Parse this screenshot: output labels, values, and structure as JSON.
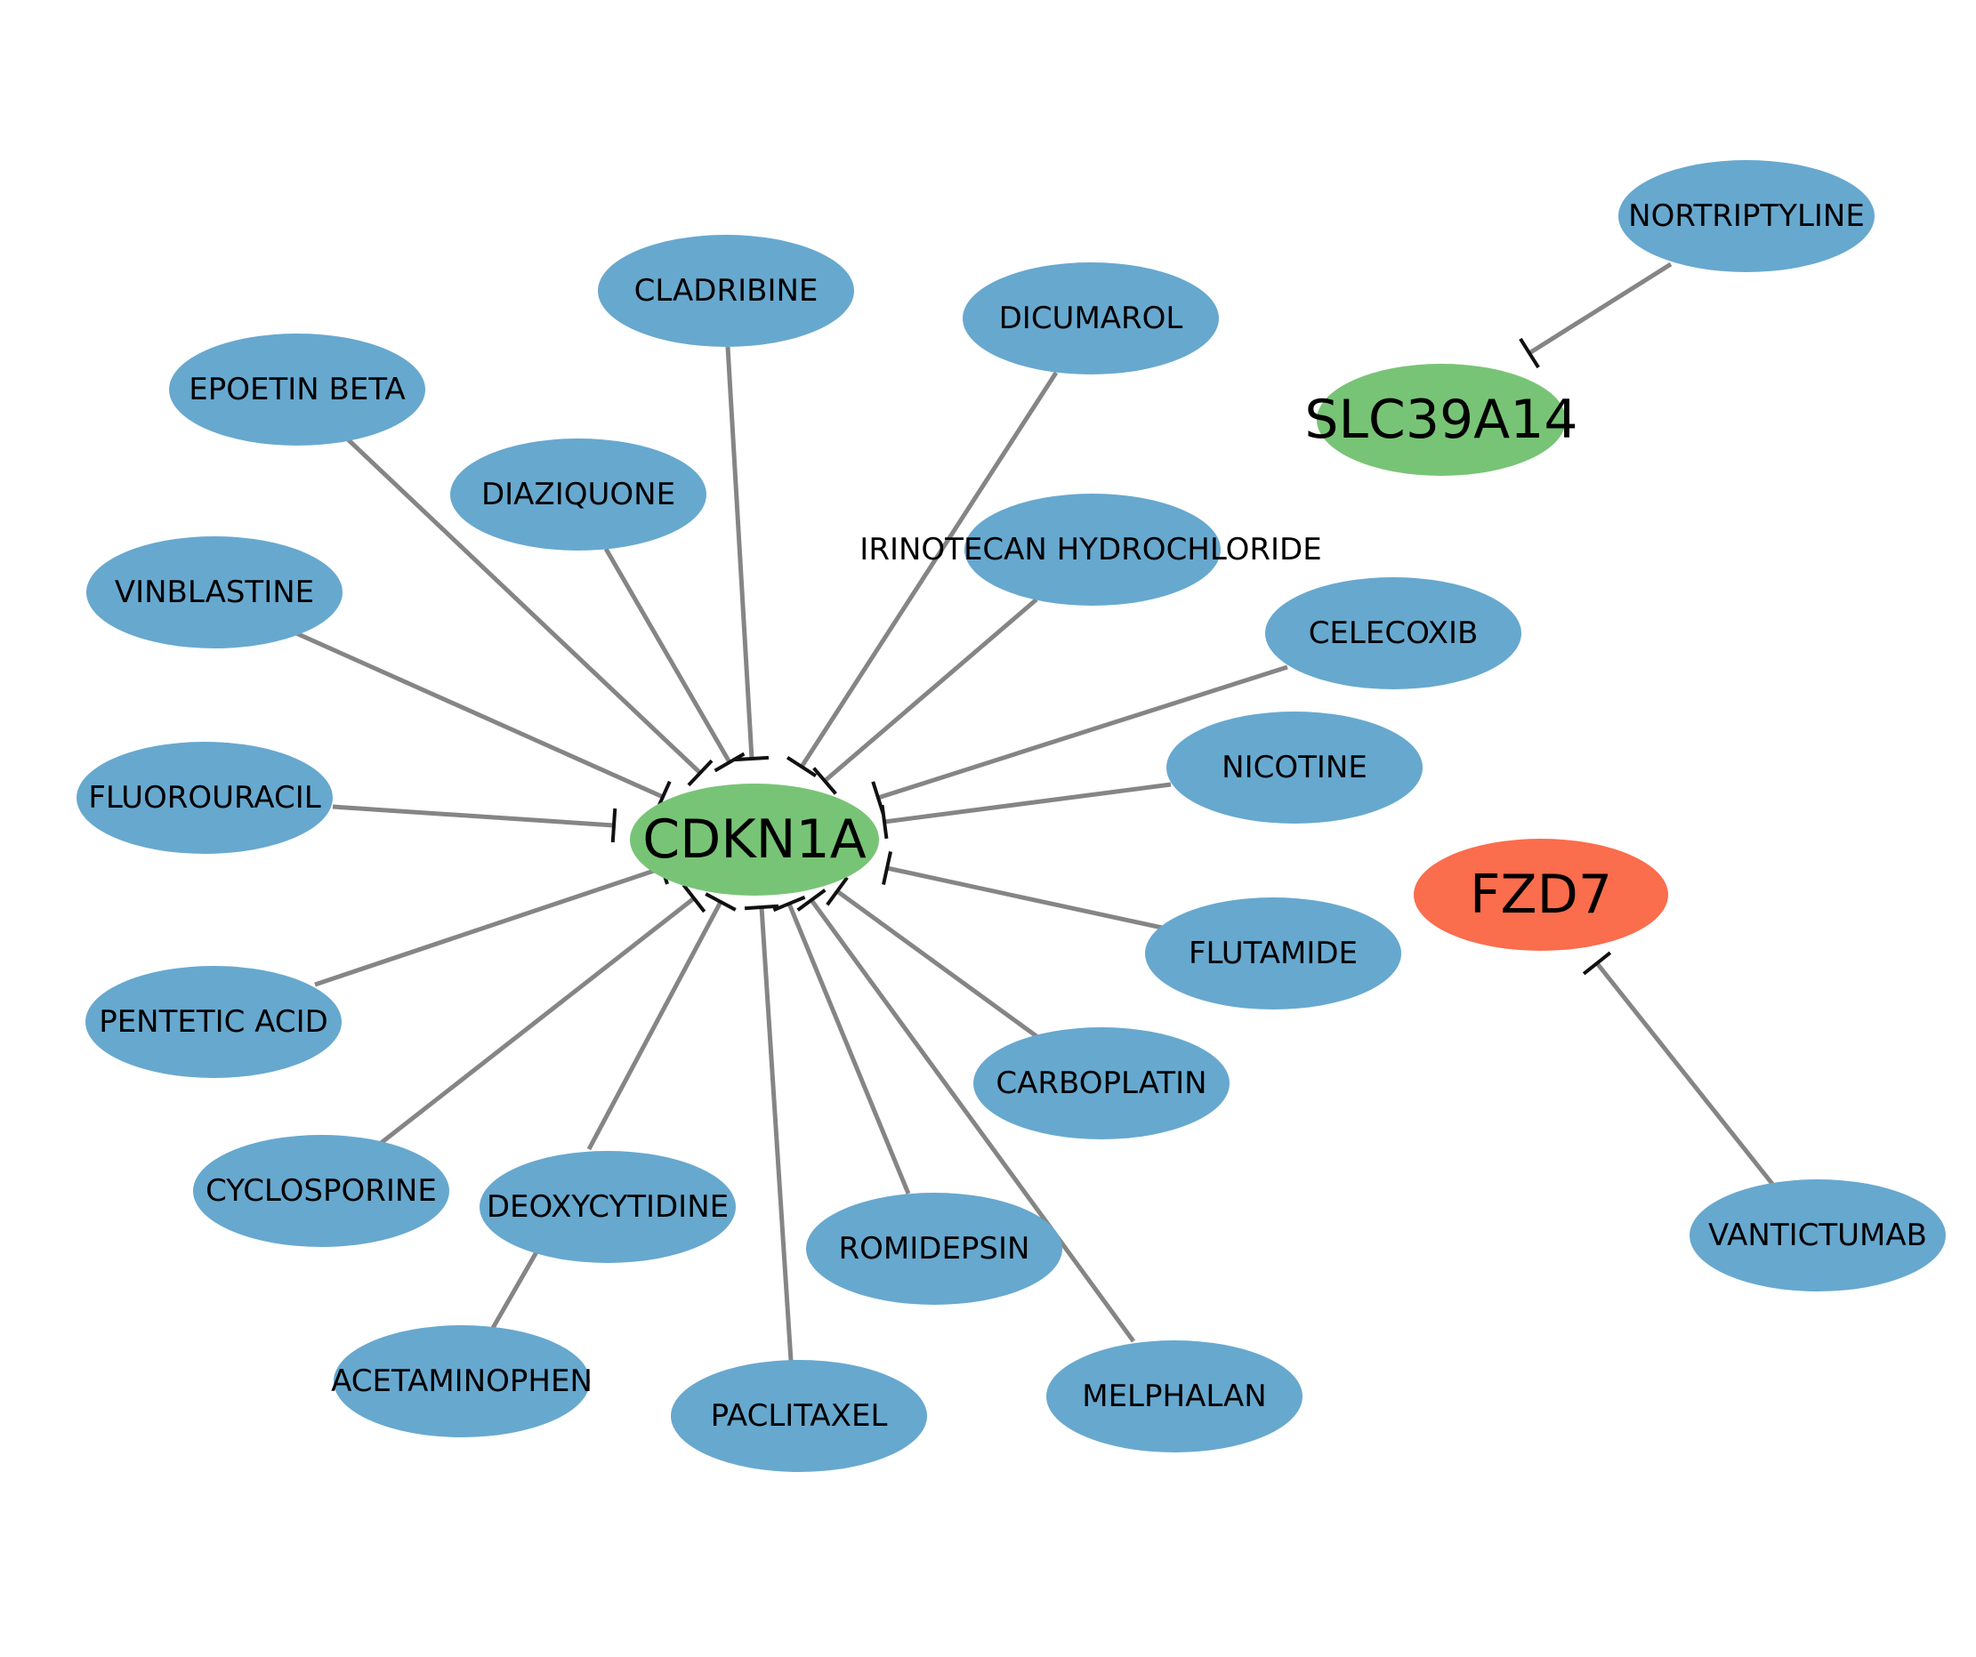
{
  "colors": {
    "drug": "#67a8cf",
    "gene": "#78c476",
    "target_gene": "#fa6d4d",
    "edge": "#858585",
    "marker": "#111111",
    "label": "#000000"
  },
  "genes": [
    {
      "id": "cdkn1a",
      "label": "CDKN1A",
      "kind": "gene"
    },
    {
      "id": "slc39a14",
      "label": "SLC39A14",
      "kind": "gene"
    },
    {
      "id": "fzd7",
      "label": "FZD7",
      "kind": "target_gene"
    }
  ],
  "drugs": [
    {
      "id": "cladribine",
      "label": "CLADRIBINE"
    },
    {
      "id": "dicumarol",
      "label": "DICUMAROL"
    },
    {
      "id": "epoetin-beta",
      "label": "EPOETIN BETA"
    },
    {
      "id": "diaziquone",
      "label": "DIAZIQUONE"
    },
    {
      "id": "irinotecan-hydrochloride",
      "label": "IRINOTECAN HYDROCHLORIDE"
    },
    {
      "id": "vinblastine",
      "label": "VINBLASTINE"
    },
    {
      "id": "celecoxib",
      "label": "CELECOXIB"
    },
    {
      "id": "fluorouracil",
      "label": "FLUOROURACIL"
    },
    {
      "id": "nicotine",
      "label": "NICOTINE"
    },
    {
      "id": "flutamide",
      "label": "FLUTAMIDE"
    },
    {
      "id": "pentetic-acid",
      "label": "PENTETIC ACID"
    },
    {
      "id": "carboplatin",
      "label": "CARBOPLATIN"
    },
    {
      "id": "cyclosporine",
      "label": "CYCLOSPORINE"
    },
    {
      "id": "deoxycytidine",
      "label": "DEOXYCYTIDINE"
    },
    {
      "id": "romidepsin",
      "label": "ROMIDEPSIN"
    },
    {
      "id": "acetaminophen",
      "label": "ACETAMINOPHEN"
    },
    {
      "id": "paclitaxel",
      "label": "PACLITAXEL"
    },
    {
      "id": "melphalan",
      "label": "MELPHALAN"
    },
    {
      "id": "nortriptyline",
      "label": "NORTRIPTYLINE"
    },
    {
      "id": "vantictumab",
      "label": "VANTICTUMAB"
    }
  ],
  "edges": [
    {
      "from": "cladribine",
      "to": "cdkn1a"
    },
    {
      "from": "dicumarol",
      "to": "cdkn1a"
    },
    {
      "from": "epoetin-beta",
      "to": "cdkn1a"
    },
    {
      "from": "diaziquone",
      "to": "cdkn1a"
    },
    {
      "from": "irinotecan-hydrochloride",
      "to": "cdkn1a"
    },
    {
      "from": "vinblastine",
      "to": "cdkn1a"
    },
    {
      "from": "celecoxib",
      "to": "cdkn1a"
    },
    {
      "from": "fluorouracil",
      "to": "cdkn1a"
    },
    {
      "from": "nicotine",
      "to": "cdkn1a"
    },
    {
      "from": "flutamide",
      "to": "cdkn1a"
    },
    {
      "from": "pentetic-acid",
      "to": "cdkn1a"
    },
    {
      "from": "carboplatin",
      "to": "cdkn1a"
    },
    {
      "from": "cyclosporine",
      "to": "cdkn1a"
    },
    {
      "from": "deoxycytidine",
      "to": "cdkn1a"
    },
    {
      "from": "acetaminophen",
      "to": "cdkn1a"
    },
    {
      "from": "paclitaxel",
      "to": "cdkn1a"
    },
    {
      "from": "romidepsin",
      "to": "cdkn1a"
    },
    {
      "from": "melphalan",
      "to": "cdkn1a"
    },
    {
      "from": "nortriptyline",
      "to": "slc39a14"
    },
    {
      "from": "vantictumab",
      "to": "fzd7"
    }
  ]
}
